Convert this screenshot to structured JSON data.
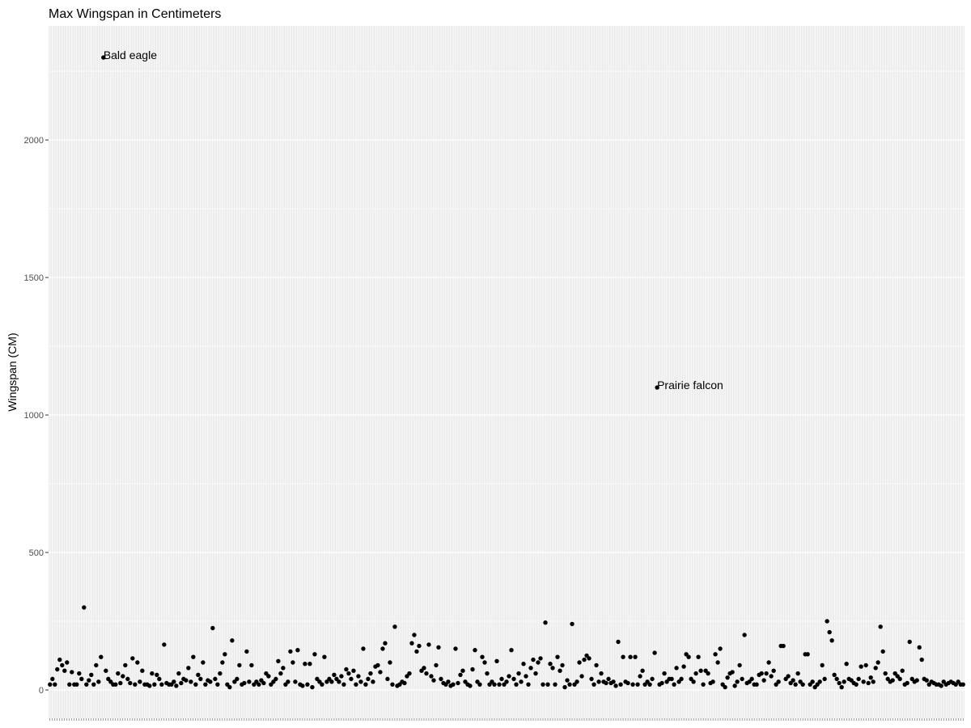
{
  "chart_data": {
    "type": "scatter",
    "title": "Max Wingspan in Centimeters",
    "xlabel": "",
    "ylabel": "Wingspan (CM)",
    "ylim": [
      -103,
      2415
    ],
    "y_ticks": [
      0,
      500,
      1000,
      1500,
      2000
    ],
    "y_tick_labels": [
      "0",
      "500",
      "1000",
      "1500",
      "2000"
    ],
    "x_axis": "categorical, no tick labels",
    "grid": true,
    "colors": {
      "panel": "#EBEBEB",
      "grid": "#FFFFFF",
      "point": "#000000",
      "tick_label": "#4D4D4D"
    },
    "annotations": [
      {
        "index": 22,
        "label": "Bald eagle"
      },
      {
        "index": 250,
        "label": "Prairie falcon"
      }
    ],
    "values": [
      20,
      40,
      20,
      75,
      110,
      90,
      70,
      100,
      20,
      65,
      20,
      20,
      60,
      40,
      300,
      20,
      35,
      55,
      20,
      90,
      30,
      120,
      2300,
      70,
      40,
      30,
      20,
      20,
      60,
      25,
      50,
      90,
      40,
      25,
      115,
      20,
      100,
      30,
      70,
      20,
      20,
      15,
      60,
      20,
      55,
      40,
      20,
      165,
      25,
      20,
      20,
      30,
      15,
      60,
      25,
      40,
      35,
      80,
      30,
      120,
      20,
      55,
      40,
      100,
      20,
      35,
      30,
      225,
      40,
      20,
      60,
      100,
      130,
      20,
      10,
      180,
      30,
      40,
      90,
      20,
      25,
      140,
      30,
      90,
      20,
      30,
      20,
      35,
      25,
      60,
      50,
      20,
      30,
      40,
      105,
      60,
      80,
      20,
      30,
      140,
      100,
      30,
      145,
      20,
      15,
      95,
      20,
      95,
      10,
      130,
      40,
      30,
      20,
      120,
      30,
      40,
      30,
      55,
      40,
      30,
      50,
      20,
      75,
      60,
      40,
      70,
      20,
      50,
      30,
      150,
      20,
      40,
      60,
      30,
      85,
      90,
      65,
      150,
      170,
      40,
      100,
      20,
      230,
      15,
      20,
      30,
      25,
      50,
      60,
      170,
      200,
      140,
      160,
      70,
      80,
      60,
      165,
      50,
      35,
      90,
      155,
      40,
      25,
      20,
      30,
      15,
      20,
      150,
      25,
      55,
      70,
      30,
      20,
      15,
      75,
      145,
      30,
      20,
      120,
      100,
      60,
      20,
      30,
      20,
      105,
      20,
      40,
      20,
      30,
      50,
      145,
      40,
      20,
      60,
      30,
      95,
      50,
      20,
      80,
      110,
      60,
      100,
      115,
      20,
      245,
      20,
      95,
      80,
      20,
      120,
      70,
      90,
      10,
      35,
      20,
      240,
      20,
      30,
      100,
      50,
      110,
      125,
      115,
      40,
      20,
      90,
      30,
      60,
      30,
      25,
      40,
      25,
      30,
      15,
      175,
      20,
      120,
      30,
      25,
      120,
      20,
      120,
      20,
      50,
      70,
      20,
      30,
      20,
      40,
      135,
      1100,
      20,
      25,
      60,
      30,
      40,
      40,
      20,
      80,
      30,
      40,
      85,
      130,
      120,
      40,
      30,
      60,
      120,
      70,
      20,
      70,
      60,
      25,
      30,
      130,
      100,
      150,
      20,
      10,
      45,
      60,
      65,
      15,
      30,
      90,
      40,
      200,
      25,
      30,
      40,
      20,
      20,
      55,
      60,
      35,
      60,
      100,
      50,
      70,
      20,
      30,
      160,
      160,
      40,
      50,
      25,
      35,
      20,
      60,
      30,
      20,
      130,
      130,
      20,
      30,
      10,
      20,
      30,
      90,
      40,
      250,
      210,
      180,
      55,
      40,
      25,
      10,
      30,
      95,
      40,
      35,
      25,
      20,
      40,
      85,
      30,
      90,
      25,
      45,
      30,
      80,
      100,
      230,
      140,
      60,
      40,
      30,
      35,
      60,
      50,
      40,
      70,
      20,
      25,
      175,
      40,
      30,
      35,
      155,
      110,
      40,
      35,
      20,
      30,
      25,
      20,
      20,
      15,
      30,
      20,
      25,
      30,
      25,
      20,
      30,
      20,
      20
    ]
  }
}
